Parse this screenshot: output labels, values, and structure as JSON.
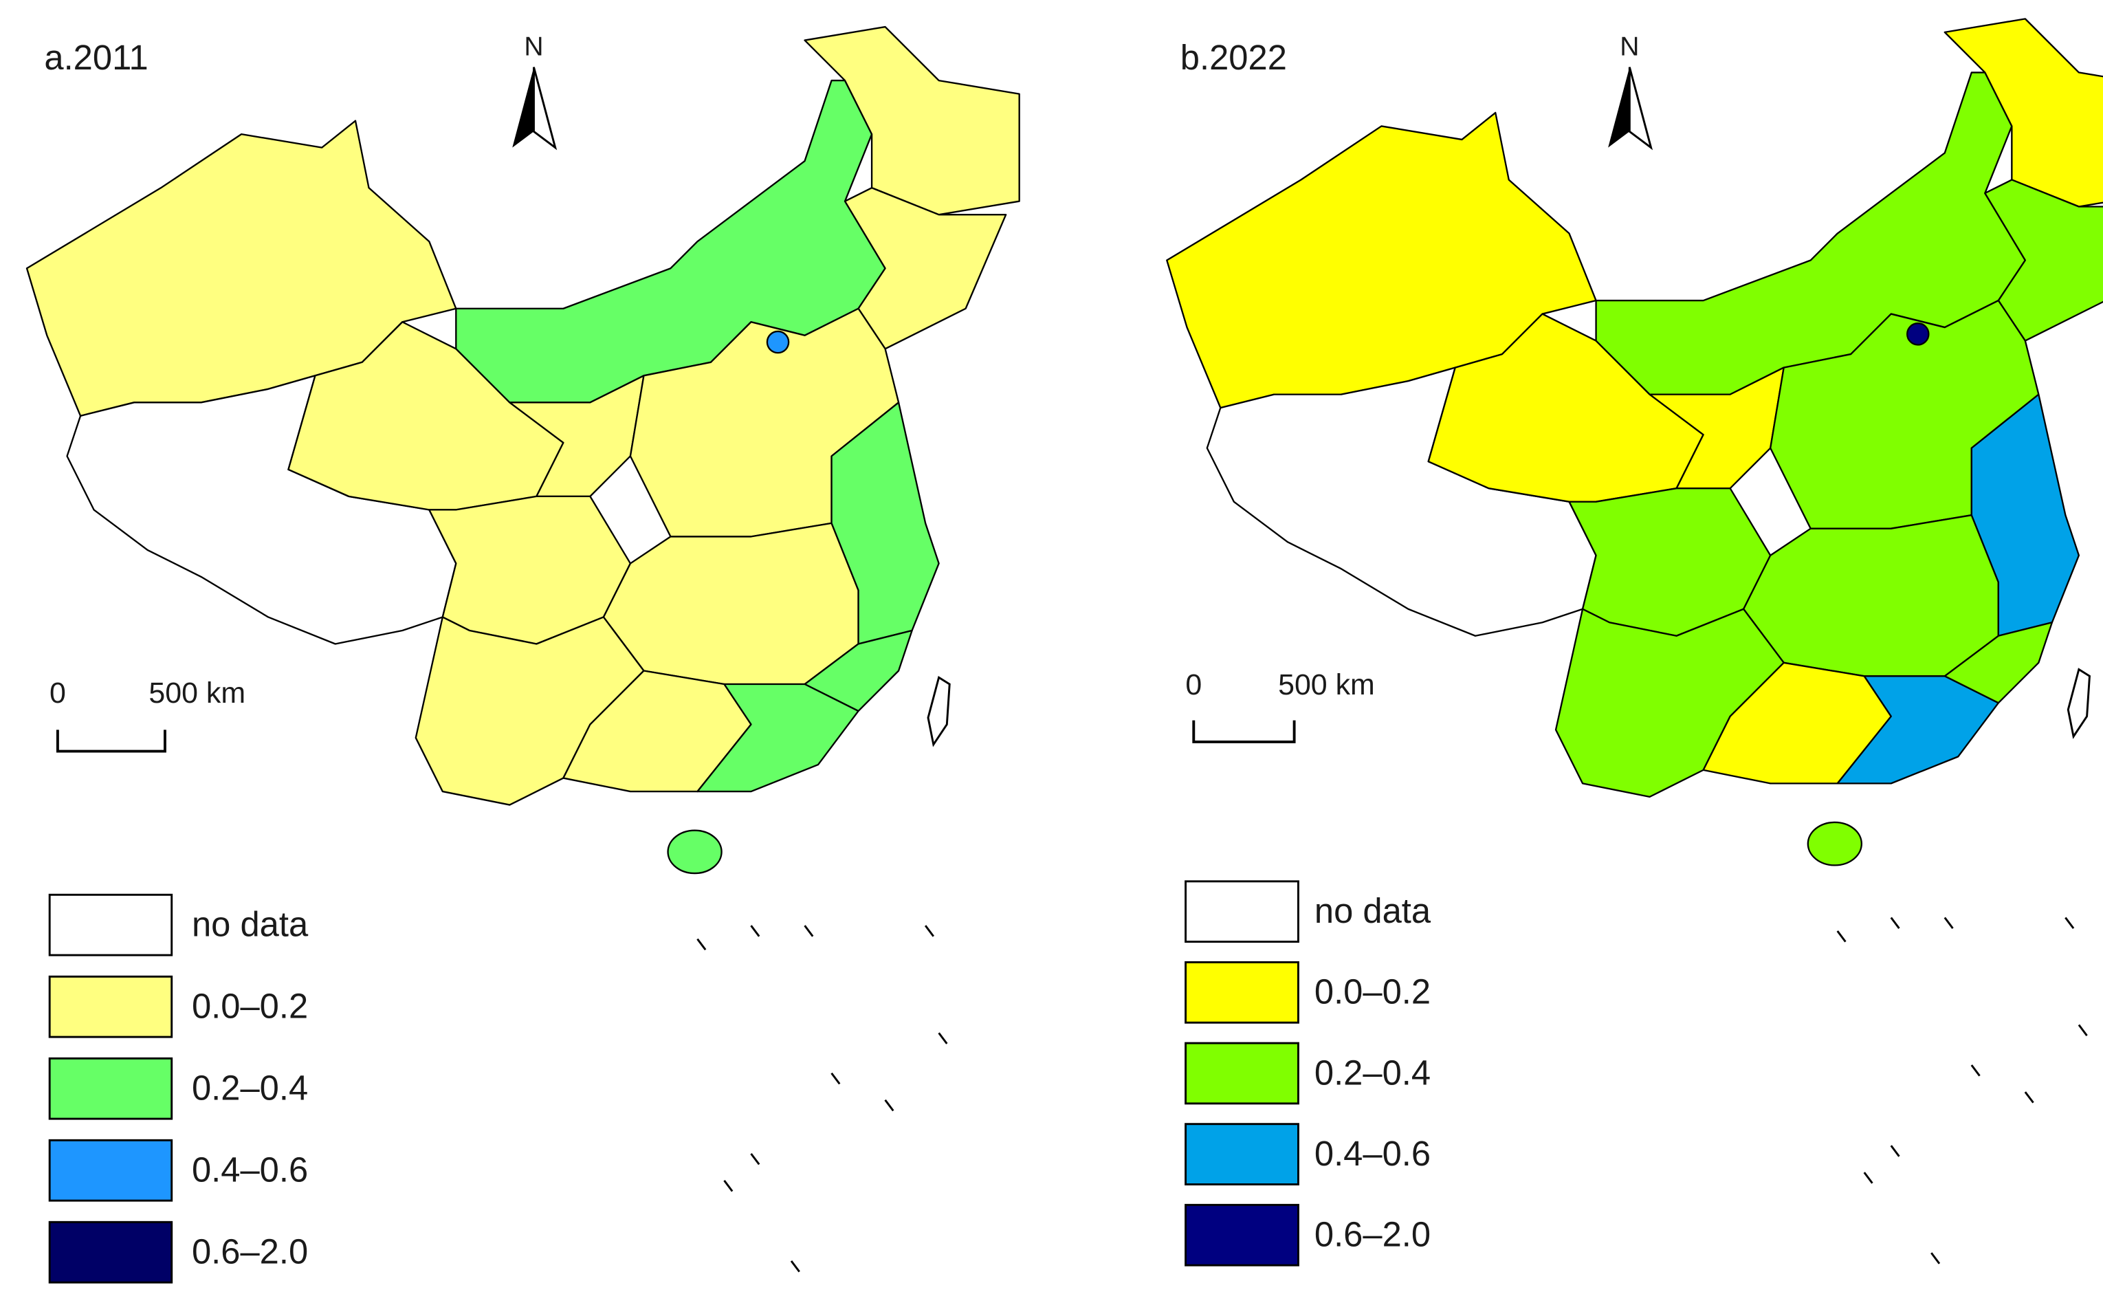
{
  "panels": [
    {
      "title": "a.2011",
      "north": "N",
      "scale_bar": {
        "labels": [
          "0",
          "500 km"
        ]
      },
      "legend": [
        {
          "label": "no data",
          "color": "#ffffff"
        },
        {
          "label": "0.0–0.2",
          "color": "#ffff80"
        },
        {
          "label": "0.2–0.4",
          "color": "#66ff66"
        },
        {
          "label": "0.4–0.6",
          "color": "#1e96ff"
        },
        {
          "label": "0.6–2.0",
          "color": "#000066"
        }
      ]
    },
    {
      "title": "b.2022",
      "north": "N",
      "scale_bar": {
        "labels": [
          "0",
          "500 km"
        ]
      },
      "legend": [
        {
          "label": "no data",
          "color": "#ffffff"
        },
        {
          "label": "0.0–0.2",
          "color": "#ffff00"
        },
        {
          "label": "0.2–0.4",
          "color": "#80ff00"
        },
        {
          "label": "0.4–0.6",
          "color": "#00a2e8"
        },
        {
          "label": "0.6–2.0",
          "color": "#000080"
        }
      ]
    }
  ]
}
